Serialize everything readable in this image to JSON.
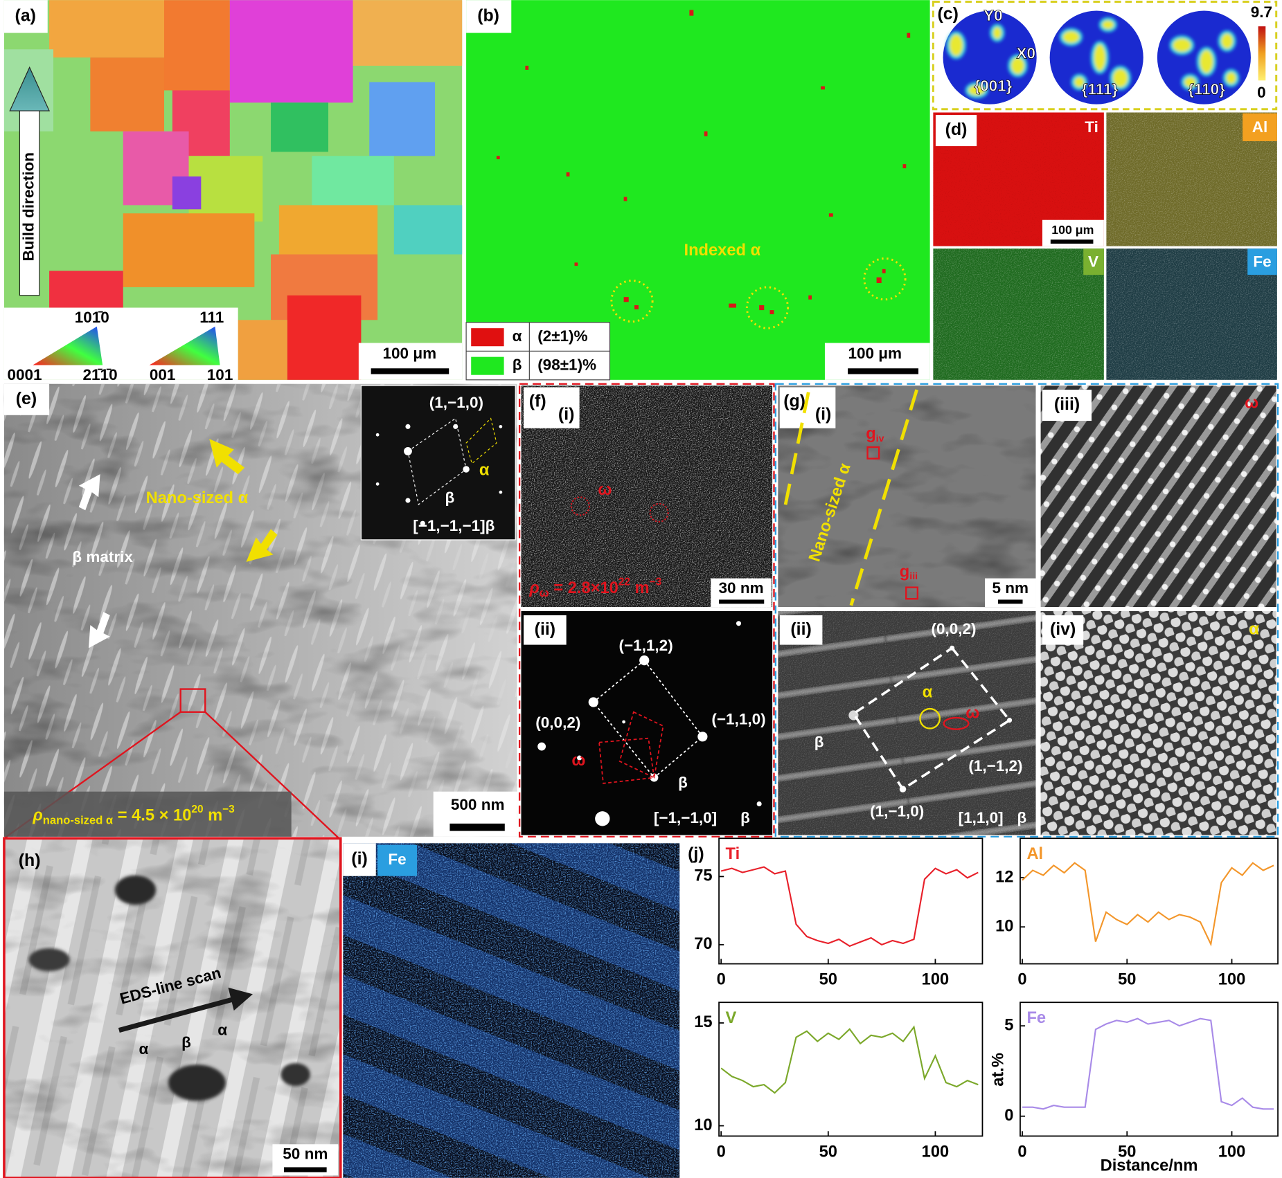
{
  "panel_a": {
    "label": "(a)",
    "arrow_label": "Build direction",
    "ipf_hex": {
      "top": "101̄0",
      "left": "0001",
      "right": "21̄1̄0"
    },
    "ipf_cubic": {
      "top": "111",
      "left": "001",
      "right": "101"
    },
    "scale_bar": "100 μm"
  },
  "panel_b": {
    "label": "(b)",
    "annotation": "Indexed α",
    "legend": [
      {
        "phase": "α",
        "fraction": "(2±1)%"
      },
      {
        "phase": "β",
        "fraction": "(98±1)%"
      }
    ],
    "scale_bar": "100 μm"
  },
  "panel_c": {
    "label": "(c)",
    "axis_y": "Y0",
    "axis_x": "X0",
    "poles": [
      "{001}",
      "{111}",
      "{110}"
    ],
    "colorbar_max": "9.7",
    "colorbar_min": "0"
  },
  "panel_d": {
    "label": "(d)",
    "elements": [
      "Ti",
      "Al",
      "V",
      "Fe"
    ],
    "scale_bar": "100 μm"
  },
  "panel_e": {
    "label": "(e)",
    "inset": {
      "spot": "(1,−1,0)",
      "alpha": "α",
      "beta": "β",
      "zone": "[−1,−1,−1]β"
    },
    "arrow_yellow": "Nano-sized α",
    "arrow_white": "β matrix",
    "density": {
      "symbol": "ρ",
      "subscript": "nano-sized α",
      "text": " = 4.5 × 10",
      "exponent": "20",
      "unit": " m",
      "unit_exponent": "−3"
    },
    "scale_bar": "500 nm"
  },
  "panel_f": {
    "label": "(f)",
    "sub_i": {
      "label": "(i)",
      "omega": "ω",
      "density": {
        "symbol": "ρ",
        "subscript": "ω",
        "text": " = 2.8×10",
        "exponent": "22",
        "unit": " m",
        "unit_exponent": "−3"
      },
      "scale_bar": "30 nm"
    },
    "sub_ii": {
      "label": "(ii)",
      "spots": [
        "(−1,1,2)",
        "(0,0,2)",
        "(−1,1,0)"
      ],
      "omega": "ω",
      "beta": "β",
      "zone": "[−1,−1,0]",
      "zone_phase": "β"
    }
  },
  "panel_g": {
    "label": "(g)",
    "sub_i": {
      "label": "(i)",
      "annotation": "Nano-sized α",
      "box_iv": {
        "symbol": "g",
        "subscript": "iv"
      },
      "box_iii": {
        "symbol": "g",
        "subscript": "iii"
      },
      "scale_bar": "5 nm"
    },
    "sub_ii": {
      "label": "(ii)",
      "spots": [
        "(0,0,2)",
        "(1,−1,2)",
        "(1,−1,0)"
      ],
      "alpha": "α",
      "omega": "ω",
      "beta": "β",
      "zone": "[1,1,0]",
      "zone_phase": "β"
    },
    "sub_iii": {
      "label": "(iii)",
      "phase": "ω"
    },
    "sub_iv": {
      "label": "(iv)",
      "phase": "α"
    }
  },
  "panel_h": {
    "label": "(h)",
    "arrow": "EDS-line scan",
    "phases": [
      "α",
      "β",
      "α"
    ],
    "scale_bar": "50 nm"
  },
  "panel_i": {
    "label": "(i)",
    "element": "Fe"
  },
  "panel_j": {
    "label": "(j)",
    "y_label": "at.%",
    "x_label": "Distance/nm",
    "charts": [
      {
        "type": "line",
        "title": "Ti",
        "color": "#e8202a",
        "x": [
          0,
          5,
          10,
          15,
          20,
          25,
          30,
          35,
          40,
          45,
          50,
          55,
          60,
          65,
          70,
          75,
          80,
          85,
          90,
          95,
          100,
          105,
          110,
          115,
          120
        ],
        "values": [
          75.4,
          75.6,
          75.3,
          75.5,
          75.7,
          75.2,
          75.4,
          71.5,
          70.6,
          70.3,
          70.1,
          70.4,
          69.9,
          70.2,
          70.5,
          70.0,
          70.3,
          70.1,
          70.4,
          74.8,
          75.6,
          75.2,
          75.5,
          74.9,
          75.3
        ],
        "xlim": [
          -1,
          122
        ],
        "xticks": [
          0,
          50,
          100
        ],
        "ylim": [
          68.6,
          77.8
        ],
        "yticks": [
          70,
          75
        ]
      },
      {
        "type": "line",
        "title": "Al",
        "color": "#f3962a",
        "x": [
          0,
          5,
          10,
          15,
          20,
          25,
          30,
          35,
          40,
          45,
          50,
          55,
          60,
          65,
          70,
          75,
          80,
          85,
          90,
          95,
          100,
          105,
          110,
          115,
          120
        ],
        "values": [
          11.9,
          12.3,
          12.1,
          12.5,
          12.2,
          12.6,
          12.3,
          9.4,
          10.6,
          10.3,
          10.1,
          10.5,
          10.2,
          10.6,
          10.3,
          10.5,
          10.4,
          10.2,
          9.3,
          11.8,
          12.4,
          12.1,
          12.6,
          12.3,
          12.5
        ],
        "xlim": [
          -1,
          122
        ],
        "xticks": [
          0,
          50,
          100
        ],
        "ylim": [
          8.5,
          13.6
        ],
        "yticks": [
          10,
          12
        ]
      },
      {
        "type": "line",
        "title": "V",
        "color": "#7ba82a",
        "x": [
          0,
          5,
          10,
          15,
          20,
          25,
          30,
          35,
          40,
          45,
          50,
          55,
          60,
          65,
          70,
          75,
          80,
          85,
          90,
          95,
          100,
          105,
          110,
          115,
          120
        ],
        "values": [
          12.8,
          12.4,
          12.2,
          11.9,
          12.0,
          11.6,
          12.1,
          14.3,
          14.6,
          14.1,
          14.5,
          14.2,
          14.7,
          14.0,
          14.4,
          14.3,
          14.5,
          14.1,
          14.8,
          12.3,
          13.4,
          12.1,
          11.9,
          12.2,
          12.0
        ],
        "xlim": [
          -1,
          122
        ],
        "xticks": [
          0,
          50,
          100
        ],
        "ylim": [
          9.5,
          16
        ],
        "yticks": [
          10,
          15
        ]
      },
      {
        "type": "line",
        "title": "Fe",
        "color": "#a88ae8",
        "x": [
          0,
          5,
          10,
          15,
          20,
          25,
          30,
          35,
          40,
          45,
          50,
          55,
          60,
          65,
          70,
          75,
          80,
          85,
          90,
          95,
          100,
          105,
          110,
          115,
          120
        ],
        "values": [
          0.5,
          0.5,
          0.4,
          0.6,
          0.5,
          0.5,
          0.5,
          4.8,
          5.1,
          5.3,
          5.2,
          5.4,
          5.1,
          5.2,
          5.3,
          5.0,
          5.2,
          5.4,
          5.3,
          0.8,
          0.6,
          1.0,
          0.5,
          0.4,
          0.4
        ],
        "xlim": [
          -1,
          122
        ],
        "xticks": [
          0,
          50,
          100
        ],
        "ylim": [
          -1.1,
          6.3
        ],
        "yticks": [
          0,
          5
        ]
      }
    ]
  }
}
